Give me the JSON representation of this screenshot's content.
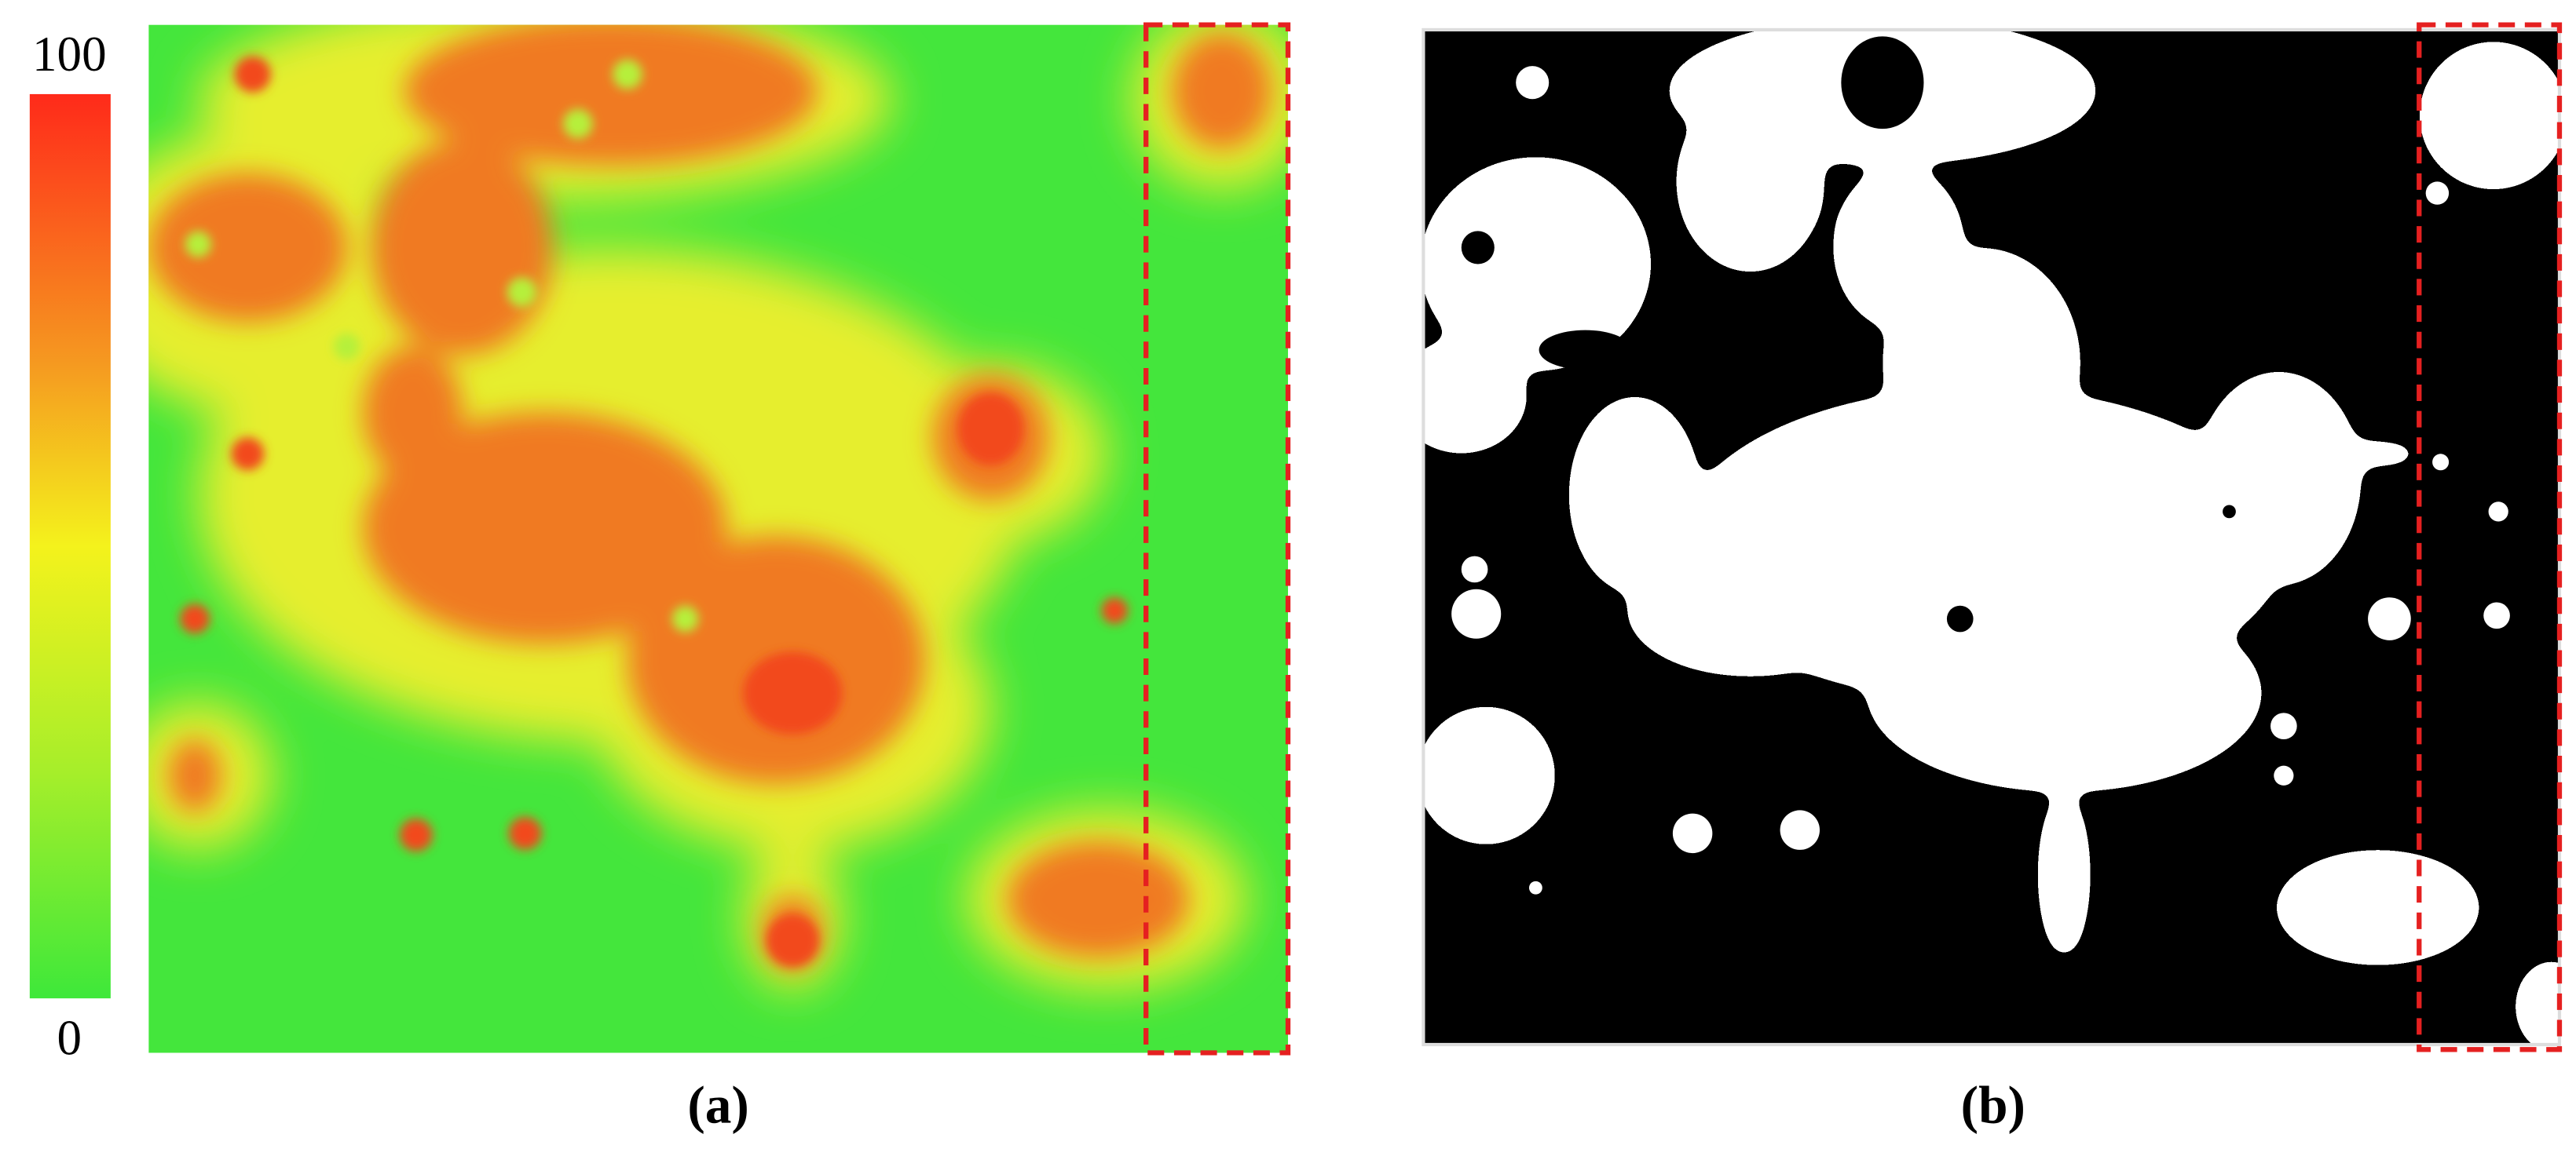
{
  "colorbar": {
    "ticks": [
      100,
      0
    ]
  },
  "panels": [
    {
      "label": "(a)"
    },
    {
      "label": "(b)"
    }
  ]
}
